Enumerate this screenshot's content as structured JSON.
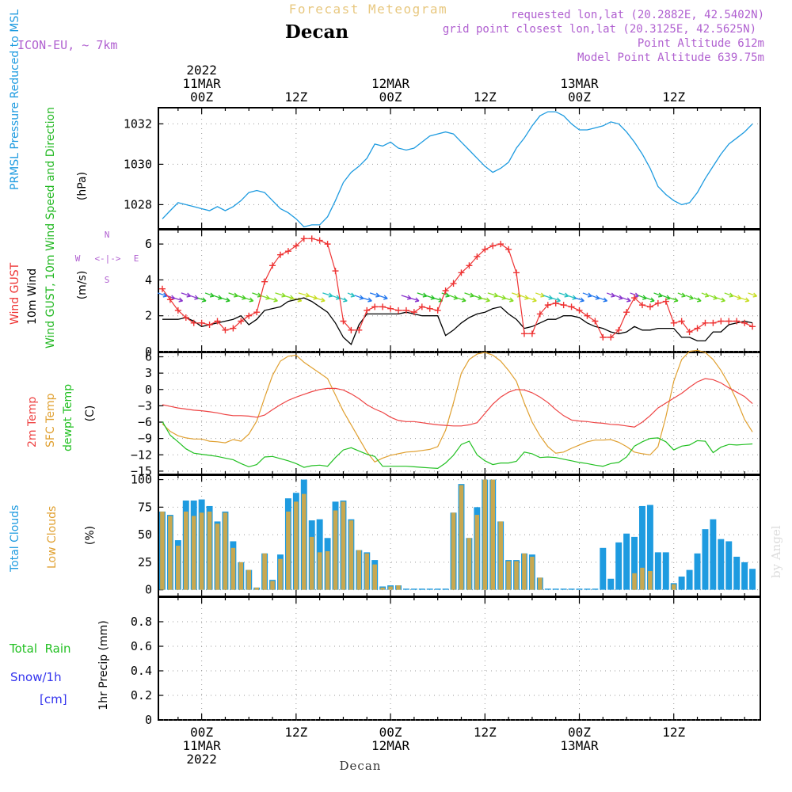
{
  "header": {
    "title_top": "Forecast Meteogram",
    "station": "Decan",
    "model": "ICON-EU, ~ 7km",
    "requested": "requested lon,lat (20.2882E, 42.5402N)",
    "gridpoint": "grid point closest lon,lat (20.3125E, 42.5625N)",
    "point_alt": "Point Altitude 612m",
    "model_alt": "Model Point Altitude 639.75m",
    "credit": "by Angel",
    "footer_station": "Decan"
  },
  "colors": {
    "pressure": "#1e9be0",
    "gust": "#ee3333",
    "wind": "#000000",
    "dir_label": "#22b822",
    "temp2m": "#ee4444",
    "sfc": "#e0a030",
    "dewpt": "#22c022",
    "total_clouds": "#1e9be0",
    "low_clouds": "#c8a850",
    "rain": "#22c022",
    "snow": "#3333ee",
    "purple": "#b060d0"
  },
  "time_axis": {
    "top_labels": [
      {
        "t": 0,
        "lines": [
          "2022",
          "11MAR",
          "00Z"
        ]
      },
      {
        "t": 12,
        "lines": [
          "12Z"
        ]
      },
      {
        "t": 24,
        "lines": [
          "12MAR",
          "00Z"
        ]
      },
      {
        "t": 36,
        "lines": [
          "12Z"
        ]
      },
      {
        "t": 48,
        "lines": [
          "13MAR",
          "00Z"
        ]
      },
      {
        "t": 60,
        "lines": [
          "12Z"
        ]
      }
    ],
    "bottom_labels": [
      {
        "t": 0,
        "lines": [
          "00Z",
          "11MAR",
          "2022"
        ]
      },
      {
        "t": 12,
        "lines": [
          "12Z"
        ]
      },
      {
        "t": 24,
        "lines": [
          "00Z",
          "12MAR"
        ]
      },
      {
        "t": 36,
        "lines": [
          "12Z"
        ]
      },
      {
        "t": 48,
        "lines": [
          "00Z",
          "13MAR"
        ]
      },
      {
        "t": 60,
        "lines": [
          "12Z"
        ]
      }
    ]
  },
  "chart_data": [
    {
      "type": "line",
      "id": "pressure",
      "title": "PRMSL Pressure Reduced to MSL",
      "ylabel": "(hPa)",
      "ylim": [
        1026.8,
        1032.8
      ],
      "yticks": [
        1028,
        1030,
        1032
      ],
      "xlim": [
        -5.5,
        71
      ],
      "x": [
        -5,
        -4,
        -3,
        -2,
        -1,
        0,
        1,
        2,
        3,
        4,
        5,
        6,
        7,
        8,
        9,
        10,
        11,
        12,
        13,
        14,
        15,
        16,
        17,
        18,
        19,
        20,
        21,
        22,
        23,
        24,
        25,
        26,
        27,
        28,
        29,
        30,
        31,
        32,
        33,
        34,
        35,
        36,
        37,
        38,
        39,
        40,
        41,
        42,
        43,
        44,
        45,
        46,
        47,
        48,
        49,
        50,
        51,
        52,
        53,
        54,
        55,
        56,
        57,
        58,
        59,
        60,
        61,
        62,
        63,
        64,
        65,
        66,
        67,
        68,
        69,
        70
      ],
      "series": [
        {
          "name": "PRMSL",
          "values": [
            1027.3,
            1027.7,
            1028.1,
            1028.0,
            1027.9,
            1027.8,
            1027.7,
            1027.9,
            1027.7,
            1027.9,
            1028.2,
            1028.6,
            1028.7,
            1028.6,
            1028.2,
            1027.8,
            1027.6,
            1027.3,
            1026.9,
            1027.0,
            1027.0,
            1027.4,
            1028.2,
            1029.1,
            1029.6,
            1029.9,
            1030.3,
            1031.0,
            1030.9,
            1031.1,
            1030.8,
            1030.7,
            1030.8,
            1031.1,
            1031.4,
            1031.5,
            1031.6,
            1031.5,
            1031.1,
            1030.7,
            1030.3,
            1029.9,
            1029.6,
            1029.8,
            1030.1,
            1030.8,
            1031.3,
            1031.9,
            1032.4,
            1032.6,
            1032.6,
            1032.4,
            1032.0,
            1031.7,
            1031.7,
            1031.8,
            1031.9,
            1032.1,
            1032.0,
            1031.6,
            1031.1,
            1030.5,
            1029.8,
            1028.9,
            1028.5,
            1028.2,
            1028.0,
            1028.1,
            1028.6,
            1029.3,
            1029.9,
            1030.5,
            1031.0,
            1031.3,
            1031.6,
            1032.0
          ]
        }
      ]
    },
    {
      "type": "line",
      "id": "wind",
      "title": "Wind GUST, 10m Wind Speed and Direction",
      "ylabel": "(m/s)",
      "ylim": [
        0,
        6.8
      ],
      "yticks": [
        0,
        2,
        4,
        6
      ],
      "xlim": [
        -5.5,
        71
      ],
      "compass": {
        "n": "N",
        "w": "W",
        "e": "E",
        "s": "S",
        "h": "<-|->",
        "v": "^|v"
      },
      "x": [
        -5,
        -4,
        -3,
        -2,
        -1,
        0,
        1,
        2,
        3,
        4,
        5,
        6,
        7,
        8,
        9,
        10,
        11,
        12,
        13,
        14,
        15,
        16,
        17,
        18,
        19,
        20,
        21,
        22,
        23,
        24,
        25,
        26,
        27,
        28,
        29,
        30,
        31,
        32,
        33,
        34,
        35,
        36,
        37,
        38,
        39,
        40,
        41,
        42,
        43,
        44,
        45,
        46,
        47,
        48,
        49,
        50,
        51,
        52,
        53,
        54,
        55,
        56,
        57,
        58,
        59,
        60,
        61,
        62,
        63,
        64,
        65,
        66,
        67,
        68,
        69,
        70
      ],
      "series": [
        {
          "name": "Wind GUST",
          "values": [
            3.5,
            2.9,
            2.3,
            1.9,
            1.6,
            1.6,
            1.5,
            1.7,
            1.2,
            1.3,
            1.7,
            2.0,
            2.2,
            3.9,
            4.8,
            5.4,
            5.6,
            5.9,
            6.3,
            6.3,
            6.2,
            6.0,
            4.5,
            1.7,
            1.2,
            1.2,
            2.3,
            2.5,
            2.5,
            2.4,
            2.3,
            2.3,
            2.2,
            2.5,
            2.4,
            2.3,
            3.4,
            3.8,
            4.4,
            4.8,
            5.3,
            5.7,
            5.9,
            6.0,
            5.7,
            4.4,
            1.0,
            1.0,
            2.1,
            2.6,
            2.7,
            2.6,
            2.5,
            2.3,
            2.0,
            1.7,
            0.8,
            0.8,
            1.2,
            2.2,
            3.0,
            2.6,
            2.5,
            2.7,
            2.8,
            1.6,
            1.7,
            1.1,
            1.3,
            1.6,
            1.6,
            1.7,
            1.7,
            1.7,
            1.6,
            1.4
          ]
        },
        {
          "name": "10m Wind",
          "values": [
            1.8,
            1.8,
            1.8,
            1.9,
            1.7,
            1.4,
            1.5,
            1.6,
            1.7,
            1.8,
            2.0,
            1.5,
            1.8,
            2.3,
            2.4,
            2.5,
            2.8,
            2.9,
            3.0,
            2.8,
            2.5,
            2.2,
            1.6,
            0.8,
            0.4,
            1.5,
            2.1,
            2.1,
            2.1,
            2.1,
            2.1,
            2.2,
            2.1,
            2.0,
            2.0,
            2.0,
            0.9,
            1.2,
            1.6,
            1.9,
            2.1,
            2.2,
            2.4,
            2.5,
            2.1,
            1.8,
            1.3,
            1.4,
            1.6,
            1.8,
            1.8,
            2.0,
            2.0,
            1.9,
            1.6,
            1.4,
            1.3,
            1.1,
            1.0,
            1.1,
            1.4,
            1.2,
            1.2,
            1.3,
            1.3,
            1.3,
            0.8,
            0.8,
            0.6,
            0.6,
            1.1,
            1.1,
            1.5,
            1.6,
            1.7,
            1.6
          ]
        }
      ]
    },
    {
      "type": "line",
      "id": "temperature",
      "title": "2m Temp, SFC Temp, dewpt Temp",
      "ylabel": "(C)",
      "ylim": [
        -15.6,
        6.8
      ],
      "yticks": [
        -15,
        -12,
        -9,
        -6,
        -3,
        0,
        3,
        6
      ],
      "xlim": [
        -5.5,
        71
      ],
      "x": [
        -5,
        -4,
        -3,
        -2,
        -1,
        0,
        1,
        2,
        3,
        4,
        5,
        6,
        7,
        8,
        9,
        10,
        11,
        12,
        13,
        14,
        15,
        16,
        17,
        18,
        19,
        20,
        21,
        22,
        23,
        24,
        25,
        26,
        27,
        28,
        29,
        30,
        31,
        32,
        33,
        34,
        35,
        36,
        37,
        38,
        39,
        40,
        41,
        42,
        43,
        44,
        45,
        46,
        47,
        48,
        49,
        50,
        51,
        52,
        53,
        54,
        55,
        56,
        57,
        58,
        59,
        60,
        61,
        62,
        63,
        64,
        65,
        66,
        67,
        68,
        69,
        70
      ],
      "series": [
        {
          "name": "2m Temp",
          "values": [
            -2.8,
            -3.1,
            -3.4,
            -3.6,
            -3.8,
            -3.9,
            -4.1,
            -4.3,
            -4.6,
            -4.8,
            -4.8,
            -4.9,
            -5.1,
            -4.7,
            -3.7,
            -2.8,
            -2.0,
            -1.4,
            -0.9,
            -0.4,
            0.0,
            0.2,
            0.2,
            -0.1,
            -0.8,
            -1.7,
            -2.8,
            -3.6,
            -4.2,
            -5.1,
            -5.7,
            -5.9,
            -5.9,
            -6.1,
            -6.3,
            -6.5,
            -6.6,
            -6.7,
            -6.7,
            -6.5,
            -6.1,
            -4.4,
            -2.7,
            -1.4,
            -0.5,
            0.0,
            -0.1,
            -0.6,
            -1.4,
            -2.4,
            -3.7,
            -4.8,
            -5.6,
            -5.8,
            -5.9,
            -6.1,
            -6.2,
            -6.4,
            -6.5,
            -6.7,
            -6.9,
            -6.0,
            -4.8,
            -3.4,
            -2.5,
            -1.6,
            -0.7,
            0.4,
            1.4,
            2.0,
            1.8,
            1.2,
            0.3,
            -0.5,
            -1.3,
            -2.6
          ]
        },
        {
          "name": "SFC Temp",
          "values": [
            -6.3,
            -7.7,
            -8.5,
            -8.9,
            -9.1,
            -9.1,
            -9.5,
            -9.6,
            -9.8,
            -9.2,
            -9.5,
            -8.2,
            -5.8,
            -1.5,
            2.6,
            5.2,
            6.1,
            6.3,
            5.0,
            4.0,
            3.0,
            2.0,
            -1.0,
            -4.0,
            -6.5,
            -9.0,
            -11.5,
            -13.3,
            -12.6,
            -12.1,
            -11.8,
            -11.5,
            -11.4,
            -11.2,
            -11.0,
            -10.5,
            -7.5,
            -2.5,
            3.0,
            5.5,
            6.5,
            6.8,
            6.3,
            5.2,
            3.5,
            1.5,
            -2.5,
            -6.0,
            -8.5,
            -10.5,
            -11.7,
            -11.5,
            -10.8,
            -10.2,
            -9.6,
            -9.3,
            -9.3,
            -9.2,
            -9.7,
            -10.5,
            -11.5,
            -11.8,
            -12.0,
            -10.5,
            -5.0,
            1.5,
            5.5,
            7.0,
            7.2,
            6.8,
            5.5,
            3.5,
            1.0,
            -2.0,
            -5.5,
            -7.8
          ]
        },
        {
          "name": "dewpt Temp",
          "values": [
            -5.9,
            -8.4,
            -9.6,
            -10.9,
            -11.7,
            -11.9,
            -12.1,
            -12.3,
            -12.6,
            -12.9,
            -13.6,
            -14.2,
            -13.8,
            -12.4,
            -12.3,
            -12.7,
            -13.1,
            -13.6,
            -14.3,
            -14.0,
            -13.9,
            -14.1,
            -12.5,
            -11.1,
            -10.7,
            -11.3,
            -11.9,
            -12.3,
            -14.1,
            -14.1,
            -14.1,
            -14.1,
            -14.2,
            -14.3,
            -14.4,
            -14.5,
            -13.5,
            -12.1,
            -10.1,
            -9.5,
            -12.0,
            -13.1,
            -13.8,
            -13.5,
            -13.5,
            -13.2,
            -11.5,
            -11.8,
            -12.5,
            -12.4,
            -12.5,
            -12.8,
            -13.1,
            -13.4,
            -13.6,
            -13.9,
            -14.1,
            -13.6,
            -13.4,
            -12.4,
            -10.4,
            -9.6,
            -9.0,
            -8.9,
            -9.6,
            -11.1,
            -10.4,
            -10.2,
            -9.4,
            -9.5,
            -11.6,
            -10.6,
            -10.1,
            -10.2,
            -10.1,
            -10.0
          ]
        }
      ]
    },
    {
      "type": "bar",
      "id": "clouds",
      "title": "Total Clouds, Low Clouds",
      "ylabel": "(%)",
      "ylim": [
        -6,
        104
      ],
      "yticks": [
        0,
        25,
        50,
        75,
        100
      ],
      "xlim": [
        -5.5,
        71
      ],
      "x": [
        -5,
        -4,
        -3,
        -2,
        -1,
        0,
        1,
        2,
        3,
        4,
        5,
        6,
        7,
        8,
        9,
        10,
        11,
        12,
        13,
        14,
        15,
        16,
        17,
        18,
        19,
        20,
        21,
        22,
        23,
        24,
        25,
        26,
        27,
        28,
        29,
        30,
        31,
        32,
        33,
        34,
        35,
        36,
        37,
        38,
        39,
        40,
        41,
        42,
        43,
        44,
        45,
        46,
        47,
        48,
        49,
        50,
        51,
        52,
        53,
        54,
        55,
        56,
        57,
        58,
        59,
        60,
        61,
        62,
        63,
        64,
        65,
        66,
        67,
        68,
        69,
        70
      ],
      "series": [
        {
          "name": "Total Clouds",
          "values": [
            71,
            68,
            45,
            81,
            81,
            82,
            76,
            62,
            71,
            44,
            25,
            18,
            2,
            33,
            9,
            32,
            83,
            88,
            100,
            63,
            64,
            47,
            80,
            81,
            64,
            36,
            34,
            27,
            3,
            4,
            4,
            1,
            1,
            1,
            1,
            1,
            1,
            70,
            96,
            47,
            75,
            100,
            100,
            62,
            27,
            27,
            33,
            32,
            11,
            1,
            1,
            1,
            1,
            1,
            1,
            1,
            38,
            10,
            43,
            51,
            48,
            76,
            77,
            34,
            34,
            6,
            12,
            18,
            33,
            55,
            64,
            46,
            44,
            30,
            25,
            19
          ]
        },
        {
          "name": "Low Clouds",
          "values": [
            71,
            67,
            40,
            71,
            67,
            70,
            71,
            60,
            70,
            38,
            25,
            18,
            2,
            33,
            8,
            28,
            71,
            80,
            87,
            48,
            34,
            35,
            72,
            80,
            63,
            36,
            33,
            23,
            2,
            3,
            4,
            0,
            0,
            0,
            0,
            0,
            0,
            70,
            95,
            47,
            68,
            100,
            100,
            62,
            26,
            26,
            33,
            30,
            11,
            0,
            0,
            0,
            0,
            0,
            0,
            0,
            0,
            0,
            0,
            0,
            15,
            20,
            17,
            0,
            0,
            5,
            0,
            0,
            0,
            0,
            0,
            0,
            0,
            0,
            0,
            0
          ]
        }
      ]
    },
    {
      "type": "bar",
      "id": "precip",
      "title": "Total Rain, Snow/1h [cm]",
      "ylabel": "1hr Precip (mm)",
      "ylim": [
        0,
        1.0
      ],
      "yticks": [
        0,
        0.2,
        0.4,
        0.6,
        0.8
      ],
      "xlim": [
        -5.5,
        71
      ],
      "labels": {
        "rain": "Total  Rain",
        "snow": "Snow/1h",
        "unit": "[cm]"
      },
      "x": [],
      "series": [
        {
          "name": "Total Rain",
          "values": []
        }
      ]
    }
  ]
}
